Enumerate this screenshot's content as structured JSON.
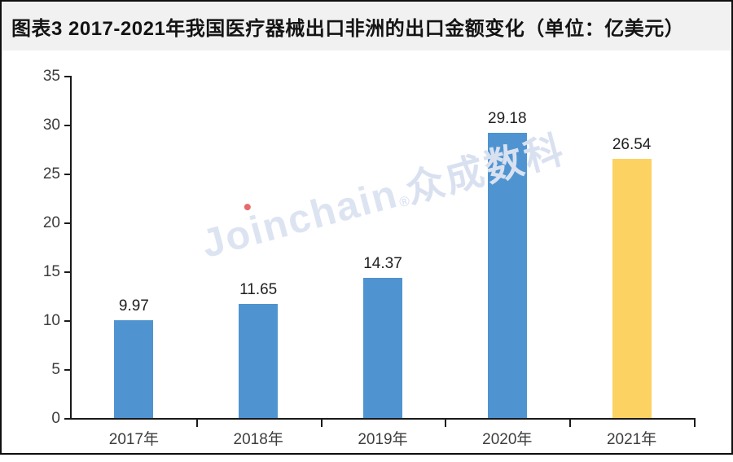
{
  "header": {
    "title": "图表3  2017-2021年我国医疗器械出口非洲的出口金额变化（单位：亿美元）"
  },
  "watermark": {
    "brand": "Joinchain",
    "reg_mark": "®",
    "suffix": "众成数科"
  },
  "colors": {
    "bar_blue": "#4F94D0",
    "bar_yellow": "#FCD362",
    "axis": "#1a1a1a",
    "tick_label": "#3d3d3d",
    "data_label": "#1f1f1f",
    "title_band_bg": "#f1f1f1",
    "frame_border": "#0f0f0f",
    "watermark_text": "#dde4f1",
    "watermark_dot": "#e66a6a"
  },
  "chart_data": {
    "type": "bar",
    "title": "图表3  2017-2021年我国医疗器械出口非洲的出口金额变化（单位：亿美元）",
    "unit_note": "单位：亿美元",
    "categories": [
      "2017年",
      "2018年",
      "2019年",
      "2020年",
      "2021年"
    ],
    "values": [
      9.97,
      11.65,
      14.37,
      29.18,
      26.54
    ],
    "value_labels": [
      "9.97",
      "11.65",
      "14.37",
      "29.18",
      "26.54"
    ],
    "bar_colors": [
      "#4F94D0",
      "#4F94D0",
      "#4F94D0",
      "#4F94D0",
      "#FCD362"
    ],
    "xlabel": "",
    "ylabel": "",
    "ylim": [
      0,
      35
    ],
    "yticks": [
      0,
      5,
      10,
      15,
      20,
      25,
      30,
      35
    ],
    "grid": false,
    "legend": "none"
  }
}
